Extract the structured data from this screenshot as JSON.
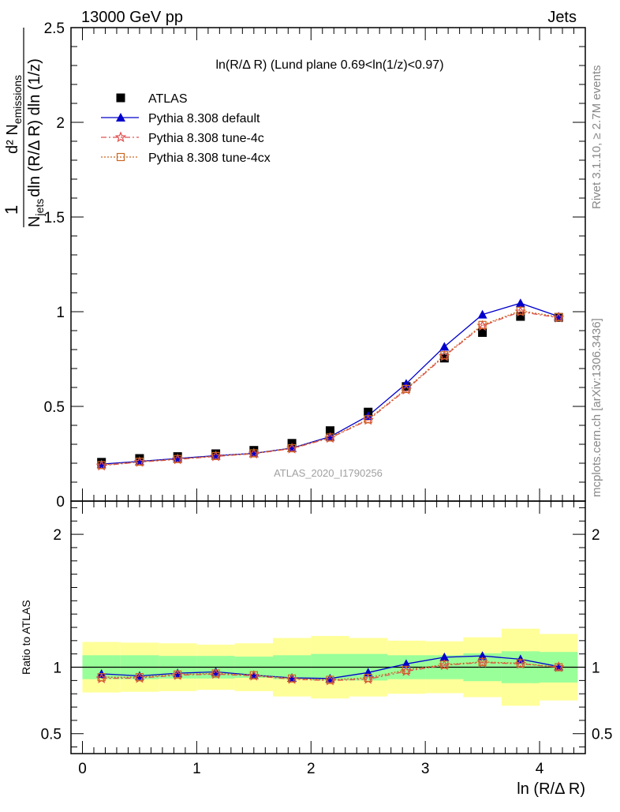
{
  "header": {
    "left": "13000 GeV pp",
    "right": "Jets"
  },
  "chart_data": [
    {
      "type": "line",
      "title": "ln(R/Δ R) (Lund plane 0.69<ln(1/z)<0.97)",
      "ylabel": {
        "prefix": "1",
        "top": "d² N",
        "top_sub": "emissions",
        "bottom_pre": "N",
        "bottom_sub": "jets",
        "bottom_post": "dln (R/Δ R) dln (1/z)"
      },
      "xlim": [
        -0.1,
        4.4
      ],
      "ylim": [
        0,
        2.5
      ],
      "yticks": [
        "0",
        "0.5",
        "1",
        "1.5",
        "2",
        "2.5"
      ],
      "watermark": "ATLAS_2020_I1790256",
      "legend": {
        "placement": "top-left",
        "entries": [
          "ATLAS",
          "Pythia 8.308 default",
          "Pythia 8.308 tune-4c",
          "Pythia 8.308 tune-4cx"
        ]
      },
      "x": [
        0.167,
        0.5,
        0.833,
        1.167,
        1.5,
        1.833,
        2.167,
        2.5,
        2.833,
        3.167,
        3.5,
        3.833,
        4.167
      ],
      "series": [
        {
          "name": "ATLAS",
          "color": "#000000",
          "values": [
            0.205,
            0.225,
            0.235,
            0.25,
            0.268,
            0.305,
            0.372,
            0.47,
            0.605,
            0.755,
            0.89,
            0.975,
            0.97
          ]
        },
        {
          "name": "Pythia 8.308 default",
          "color": "#0000cc",
          "values": [
            0.195,
            0.21,
            0.225,
            0.24,
            0.252,
            0.28,
            0.34,
            0.45,
            0.62,
            0.815,
            0.985,
            1.045,
            0.975
          ]
        },
        {
          "name": "Pythia 8.308 tune-4c",
          "color": "#e05050",
          "values": [
            0.187,
            0.206,
            0.22,
            0.236,
            0.25,
            0.277,
            0.333,
            0.428,
            0.588,
            0.765,
            0.925,
            1.0,
            0.968
          ]
        },
        {
          "name": "Pythia 8.308 tune-4cx",
          "color": "#cc6620",
          "values": [
            0.19,
            0.208,
            0.222,
            0.238,
            0.252,
            0.279,
            0.336,
            0.432,
            0.592,
            0.77,
            0.93,
            1.005,
            0.972
          ]
        }
      ]
    },
    {
      "type": "line",
      "ylabel": "Ratio to ATLAS",
      "xlabel": "ln (R/Δ R)",
      "xlim": [
        -0.1,
        4.4
      ],
      "ylim": [
        0.35,
        2.25
      ],
      "xticks": [
        "0",
        "1",
        "2",
        "3",
        "4"
      ],
      "yticks": [
        "0.5",
        "1",
        "2"
      ],
      "x": [
        0.167,
        0.5,
        0.833,
        1.167,
        1.5,
        1.833,
        2.167,
        2.5,
        2.833,
        3.167,
        3.5,
        3.833,
        4.167
      ],
      "x_edges": [
        0,
        0.333,
        0.667,
        1.0,
        1.333,
        1.667,
        2.0,
        2.333,
        2.667,
        3.0,
        3.333,
        3.667,
        4.0,
        4.333
      ],
      "bands": {
        "inner": {
          "color": "#99ff99",
          "low": [
            0.91,
            0.91,
            0.915,
            0.915,
            0.92,
            0.91,
            0.9,
            0.9,
            0.91,
            0.91,
            0.895,
            0.88,
            0.885
          ],
          "high": [
            1.09,
            1.09,
            1.085,
            1.085,
            1.08,
            1.09,
            1.1,
            1.1,
            1.09,
            1.09,
            1.105,
            1.12,
            1.115
          ]
        },
        "outer": {
          "color": "#ffff99",
          "low": [
            0.81,
            0.815,
            0.82,
            0.83,
            0.82,
            0.78,
            0.765,
            0.78,
            0.8,
            0.805,
            0.775,
            0.71,
            0.75
          ],
          "high": [
            1.19,
            1.185,
            1.18,
            1.17,
            1.18,
            1.22,
            1.235,
            1.22,
            1.2,
            1.195,
            1.225,
            1.29,
            1.25
          ]
        }
      },
      "series": [
        {
          "name": "Pythia 8.308 default",
          "color": "#0000cc",
          "values": [
            0.95,
            0.935,
            0.955,
            0.965,
            0.94,
            0.92,
            0.915,
            0.96,
            1.025,
            1.075,
            1.085,
            1.06,
            1.005
          ]
        },
        {
          "name": "Pythia 8.308 tune-4c",
          "color": "#e05050",
          "values": [
            0.915,
            0.918,
            0.94,
            0.948,
            0.935,
            0.91,
            0.9,
            0.91,
            0.97,
            1.015,
            1.035,
            1.025,
            1.0
          ]
        },
        {
          "name": "Pythia 8.308 tune-4cx",
          "color": "#cc6620",
          "values": [
            0.925,
            0.925,
            0.945,
            0.953,
            0.94,
            0.915,
            0.905,
            0.92,
            0.98,
            1.02,
            1.04,
            1.03,
            1.0
          ]
        }
      ]
    }
  ],
  "side_labels": {
    "rivet": "Rivet 3.1.10, ≥ 2.7M events",
    "mcplots": "mcplots.cern.ch [arXiv:1306.3436]"
  }
}
